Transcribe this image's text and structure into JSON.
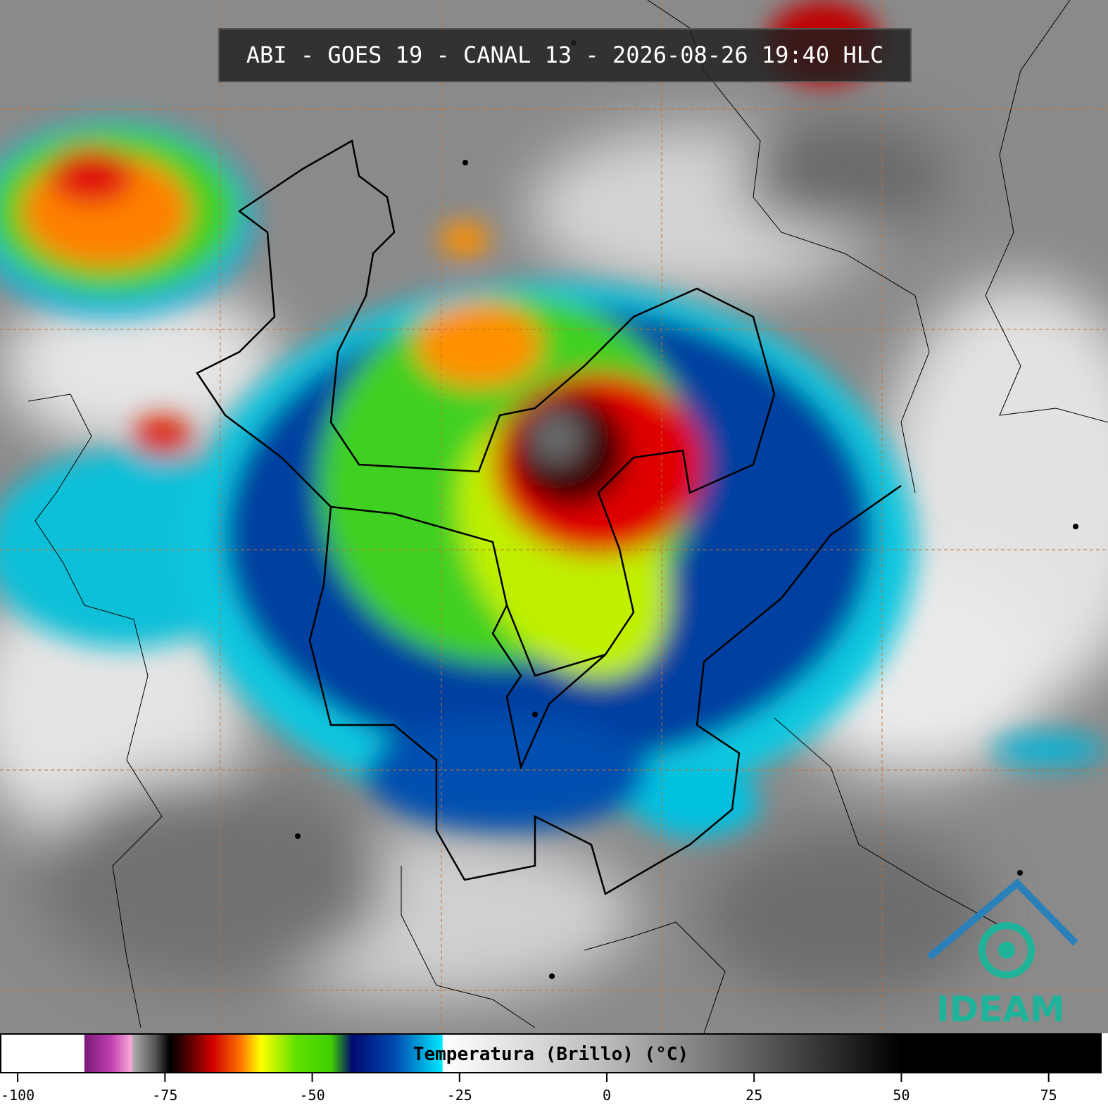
{
  "header": {
    "title": "ABI - GOES 19 - CANAL 13 - 2026-08-26 19:40 HLC"
  },
  "colorbar": {
    "label": "Temperatura (Brillo) (°C)",
    "lim": [
      -103,
      84
    ],
    "ticks": [
      -100,
      -75,
      -50,
      -25,
      0,
      25,
      50,
      75
    ]
  },
  "logo": {
    "text": "IDEAM"
  }
}
